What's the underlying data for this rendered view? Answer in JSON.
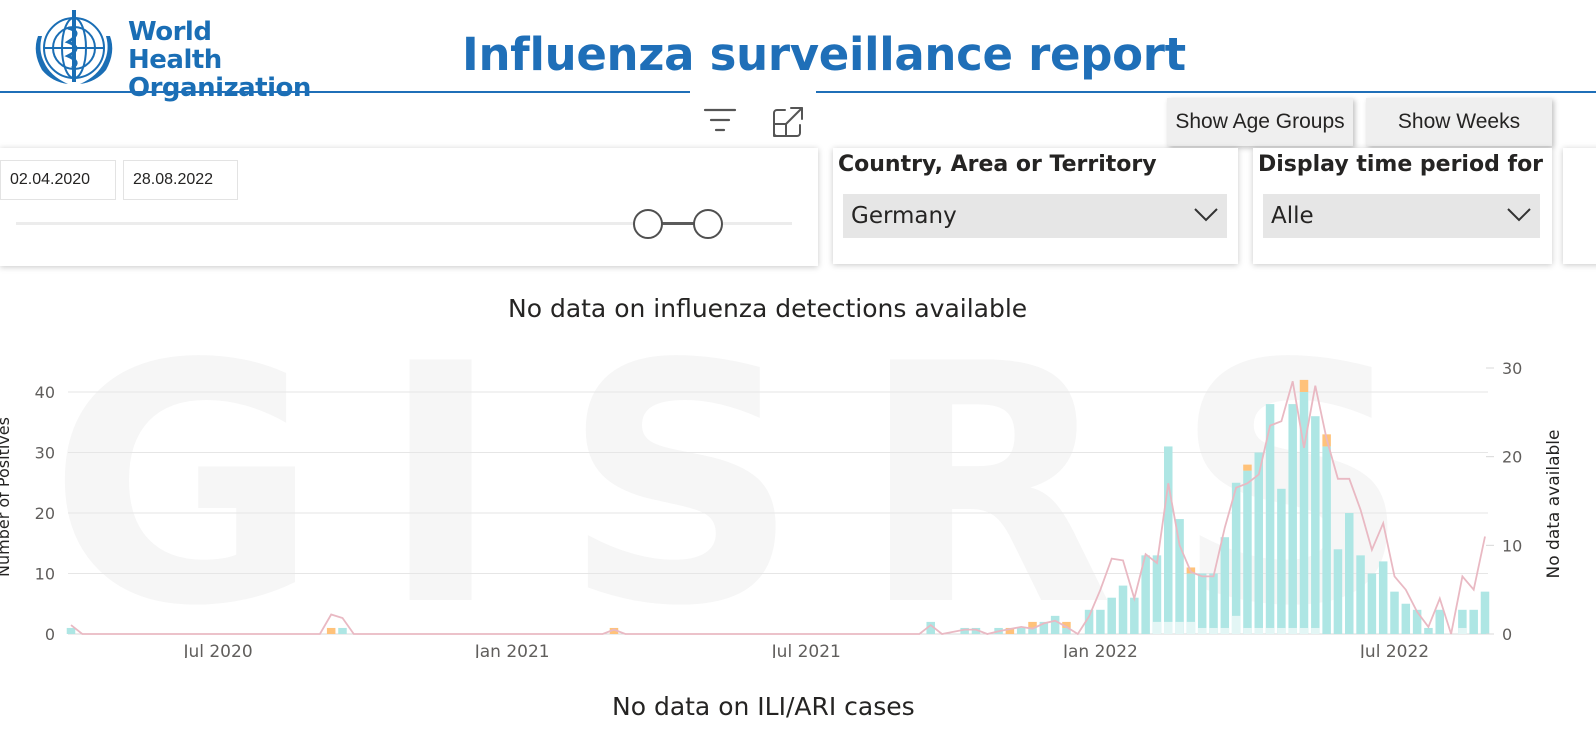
{
  "header": {
    "logo_text_line1": "World Health",
    "logo_text_line2": "Organization",
    "title": "Influenza surveillance report"
  },
  "toolbar": {
    "show_age_groups": "Show Age Groups",
    "show_weeks": "Show Weeks"
  },
  "date_slicer": {
    "start": "02.04.2020",
    "end": "28.08.2022",
    "range_start_fraction": 0.8,
    "range_end_fraction": 0.88
  },
  "country_slicer": {
    "title": "Country, Area or Territory",
    "value": "Germany"
  },
  "period_slicer": {
    "title": "Display time period for",
    "value": "Alle"
  },
  "chart1": {
    "title": "No data on influenza detections available"
  },
  "chart2": {
    "title": "No data on ILI/ARI cases"
  },
  "watermark": "GISRS",
  "colors": {
    "brand_blue": "#1f6fb8",
    "bar_a": "#aee6e4",
    "bar_b": "#ffc27a",
    "bar_base": "#e3f6f5",
    "line": "#e9b9c3"
  },
  "chart_data": {
    "type": "bar",
    "x_unit": "weeks since 2020-04-02",
    "x_range": [
      0,
      125
    ],
    "x_ticks": [
      {
        "label": "Jul 2020",
        "x": 13
      },
      {
        "label": "Jan 2021",
        "x": 39
      },
      {
        "label": "Jul 2021",
        "x": 65
      },
      {
        "label": "Jan 2022",
        "x": 91
      },
      {
        "label": "Jul 2022",
        "x": 117
      }
    ],
    "ylabel": "Number of Positives",
    "ylim": [
      0,
      45
    ],
    "y_ticks": [
      0,
      10,
      20,
      30,
      40
    ],
    "y2label": "No data available",
    "y2lim": [
      0,
      30
    ],
    "y2_ticks": [
      0,
      10,
      20,
      30
    ],
    "grid": true,
    "bars": [
      {
        "x": 0,
        "a": 1,
        "b": 0
      },
      {
        "x": 23,
        "a": 0,
        "b": 1
      },
      {
        "x": 24,
        "a": 1,
        "b": 0
      },
      {
        "x": 48,
        "a": 0,
        "b": 1
      },
      {
        "x": 76,
        "a": 2,
        "b": 0
      },
      {
        "x": 79,
        "a": 1,
        "b": 0
      },
      {
        "x": 80,
        "a": 1,
        "b": 0
      },
      {
        "x": 82,
        "a": 1,
        "b": 0
      },
      {
        "x": 83,
        "a": 0,
        "b": 1
      },
      {
        "x": 84,
        "a": 1,
        "b": 0
      },
      {
        "x": 85,
        "a": 1,
        "b": 1
      },
      {
        "x": 86,
        "a": 2,
        "b": 0
      },
      {
        "x": 87,
        "a": 3,
        "b": 0
      },
      {
        "x": 88,
        "a": 1,
        "b": 1
      },
      {
        "x": 89,
        "a": 0,
        "b": 0
      },
      {
        "x": 90,
        "a": 4,
        "b": 0
      },
      {
        "x": 91,
        "a": 4,
        "b": 0
      },
      {
        "x": 92,
        "a": 6,
        "b": 0
      },
      {
        "x": 93,
        "a": 8,
        "b": 0
      },
      {
        "x": 94,
        "a": 6,
        "b": 0
      },
      {
        "x": 95,
        "a": 13,
        "b": 0
      },
      {
        "x": 96,
        "a": 13,
        "b": 0
      },
      {
        "x": 97,
        "a": 31,
        "b": 0
      },
      {
        "x": 98,
        "a": 19,
        "b": 0
      },
      {
        "x": 99,
        "a": 10,
        "b": 1
      },
      {
        "x": 100,
        "a": 10,
        "b": 0
      },
      {
        "x": 101,
        "a": 10,
        "b": 0
      },
      {
        "x": 102,
        "a": 16,
        "b": 0
      },
      {
        "x": 103,
        "a": 25,
        "b": 0
      },
      {
        "x": 104,
        "a": 27,
        "b": 1
      },
      {
        "x": 105,
        "a": 30,
        "b": 0
      },
      {
        "x": 106,
        "a": 38,
        "b": 0
      },
      {
        "x": 107,
        "a": 24,
        "b": 0
      },
      {
        "x": 108,
        "a": 38,
        "b": 0
      },
      {
        "x": 109,
        "a": 40,
        "b": 2
      },
      {
        "x": 110,
        "a": 36,
        "b": 0
      },
      {
        "x": 111,
        "a": 31,
        "b": 2
      },
      {
        "x": 112,
        "a": 14,
        "b": 0
      },
      {
        "x": 113,
        "a": 20,
        "b": 0
      },
      {
        "x": 114,
        "a": 13,
        "b": 0
      },
      {
        "x": 115,
        "a": 10,
        "b": 0
      },
      {
        "x": 116,
        "a": 12,
        "b": 0
      },
      {
        "x": 117,
        "a": 7,
        "b": 0
      },
      {
        "x": 118,
        "a": 5,
        "b": 0
      },
      {
        "x": 119,
        "a": 4,
        "b": 0
      },
      {
        "x": 120,
        "a": 1,
        "b": 0
      },
      {
        "x": 121,
        "a": 4,
        "b": 0
      },
      {
        "x": 123,
        "a": 4,
        "b": 0
      },
      {
        "x": 124,
        "a": 4,
        "b": 0
      },
      {
        "x": 125,
        "a": 7,
        "b": 0
      }
    ],
    "base_band": [
      {
        "x": 96,
        "v": 2
      },
      {
        "x": 97,
        "v": 2
      },
      {
        "x": 98,
        "v": 2
      },
      {
        "x": 99,
        "v": 2
      },
      {
        "x": 100,
        "v": 1
      },
      {
        "x": 101,
        "v": 1
      },
      {
        "x": 102,
        "v": 1
      },
      {
        "x": 103,
        "v": 3
      },
      {
        "x": 104,
        "v": 1
      },
      {
        "x": 105,
        "v": 1
      },
      {
        "x": 106,
        "v": 1
      },
      {
        "x": 107,
        "v": 1
      },
      {
        "x": 108,
        "v": 1
      },
      {
        "x": 109,
        "v": 1
      },
      {
        "x": 110,
        "v": 1
      },
      {
        "x": 123,
        "v": 1
      }
    ],
    "line_series": {
      "axis": "right",
      "points": [
        [
          0,
          1
        ],
        [
          1,
          0
        ],
        [
          22,
          0
        ],
        [
          23,
          2.2
        ],
        [
          24,
          1.8
        ],
        [
          25,
          0
        ],
        [
          47,
          0
        ],
        [
          48,
          0.5
        ],
        [
          49,
          0
        ],
        [
          75,
          0
        ],
        [
          76,
          1
        ],
        [
          77,
          0
        ],
        [
          79,
          0.5
        ],
        [
          80,
          0.5
        ],
        [
          81,
          0
        ],
        [
          82,
          0.3
        ],
        [
          84,
          0.8
        ],
        [
          85,
          0.6
        ],
        [
          86,
          1.2
        ],
        [
          87,
          1.5
        ],
        [
          88,
          0.8
        ],
        [
          89,
          0
        ],
        [
          90,
          2
        ],
        [
          91,
          5
        ],
        [
          92,
          8.5
        ],
        [
          93,
          8.3
        ],
        [
          94,
          4
        ],
        [
          95,
          9
        ],
        [
          96,
          8
        ],
        [
          97,
          17
        ],
        [
          98,
          10
        ],
        [
          99,
          7
        ],
        [
          100,
          6.5
        ],
        [
          101,
          6.5
        ],
        [
          102,
          12
        ],
        [
          103,
          16.5
        ],
        [
          104,
          17
        ],
        [
          105,
          18
        ],
        [
          106,
          23.5
        ],
        [
          107,
          24
        ],
        [
          108,
          28.5
        ],
        [
          109,
          21
        ],
        [
          110,
          28
        ],
        [
          111,
          22
        ],
        [
          112,
          17.5
        ],
        [
          113,
          17.5
        ],
        [
          114,
          14
        ],
        [
          115,
          9.5
        ],
        [
          116,
          12.5
        ],
        [
          117,
          6.5
        ],
        [
          118,
          5
        ],
        [
          119,
          2.5
        ],
        [
          120,
          0.8
        ],
        [
          121,
          4
        ],
        [
          122,
          0
        ],
        [
          123,
          6.5
        ],
        [
          124,
          5
        ],
        [
          125,
          11
        ]
      ]
    }
  }
}
